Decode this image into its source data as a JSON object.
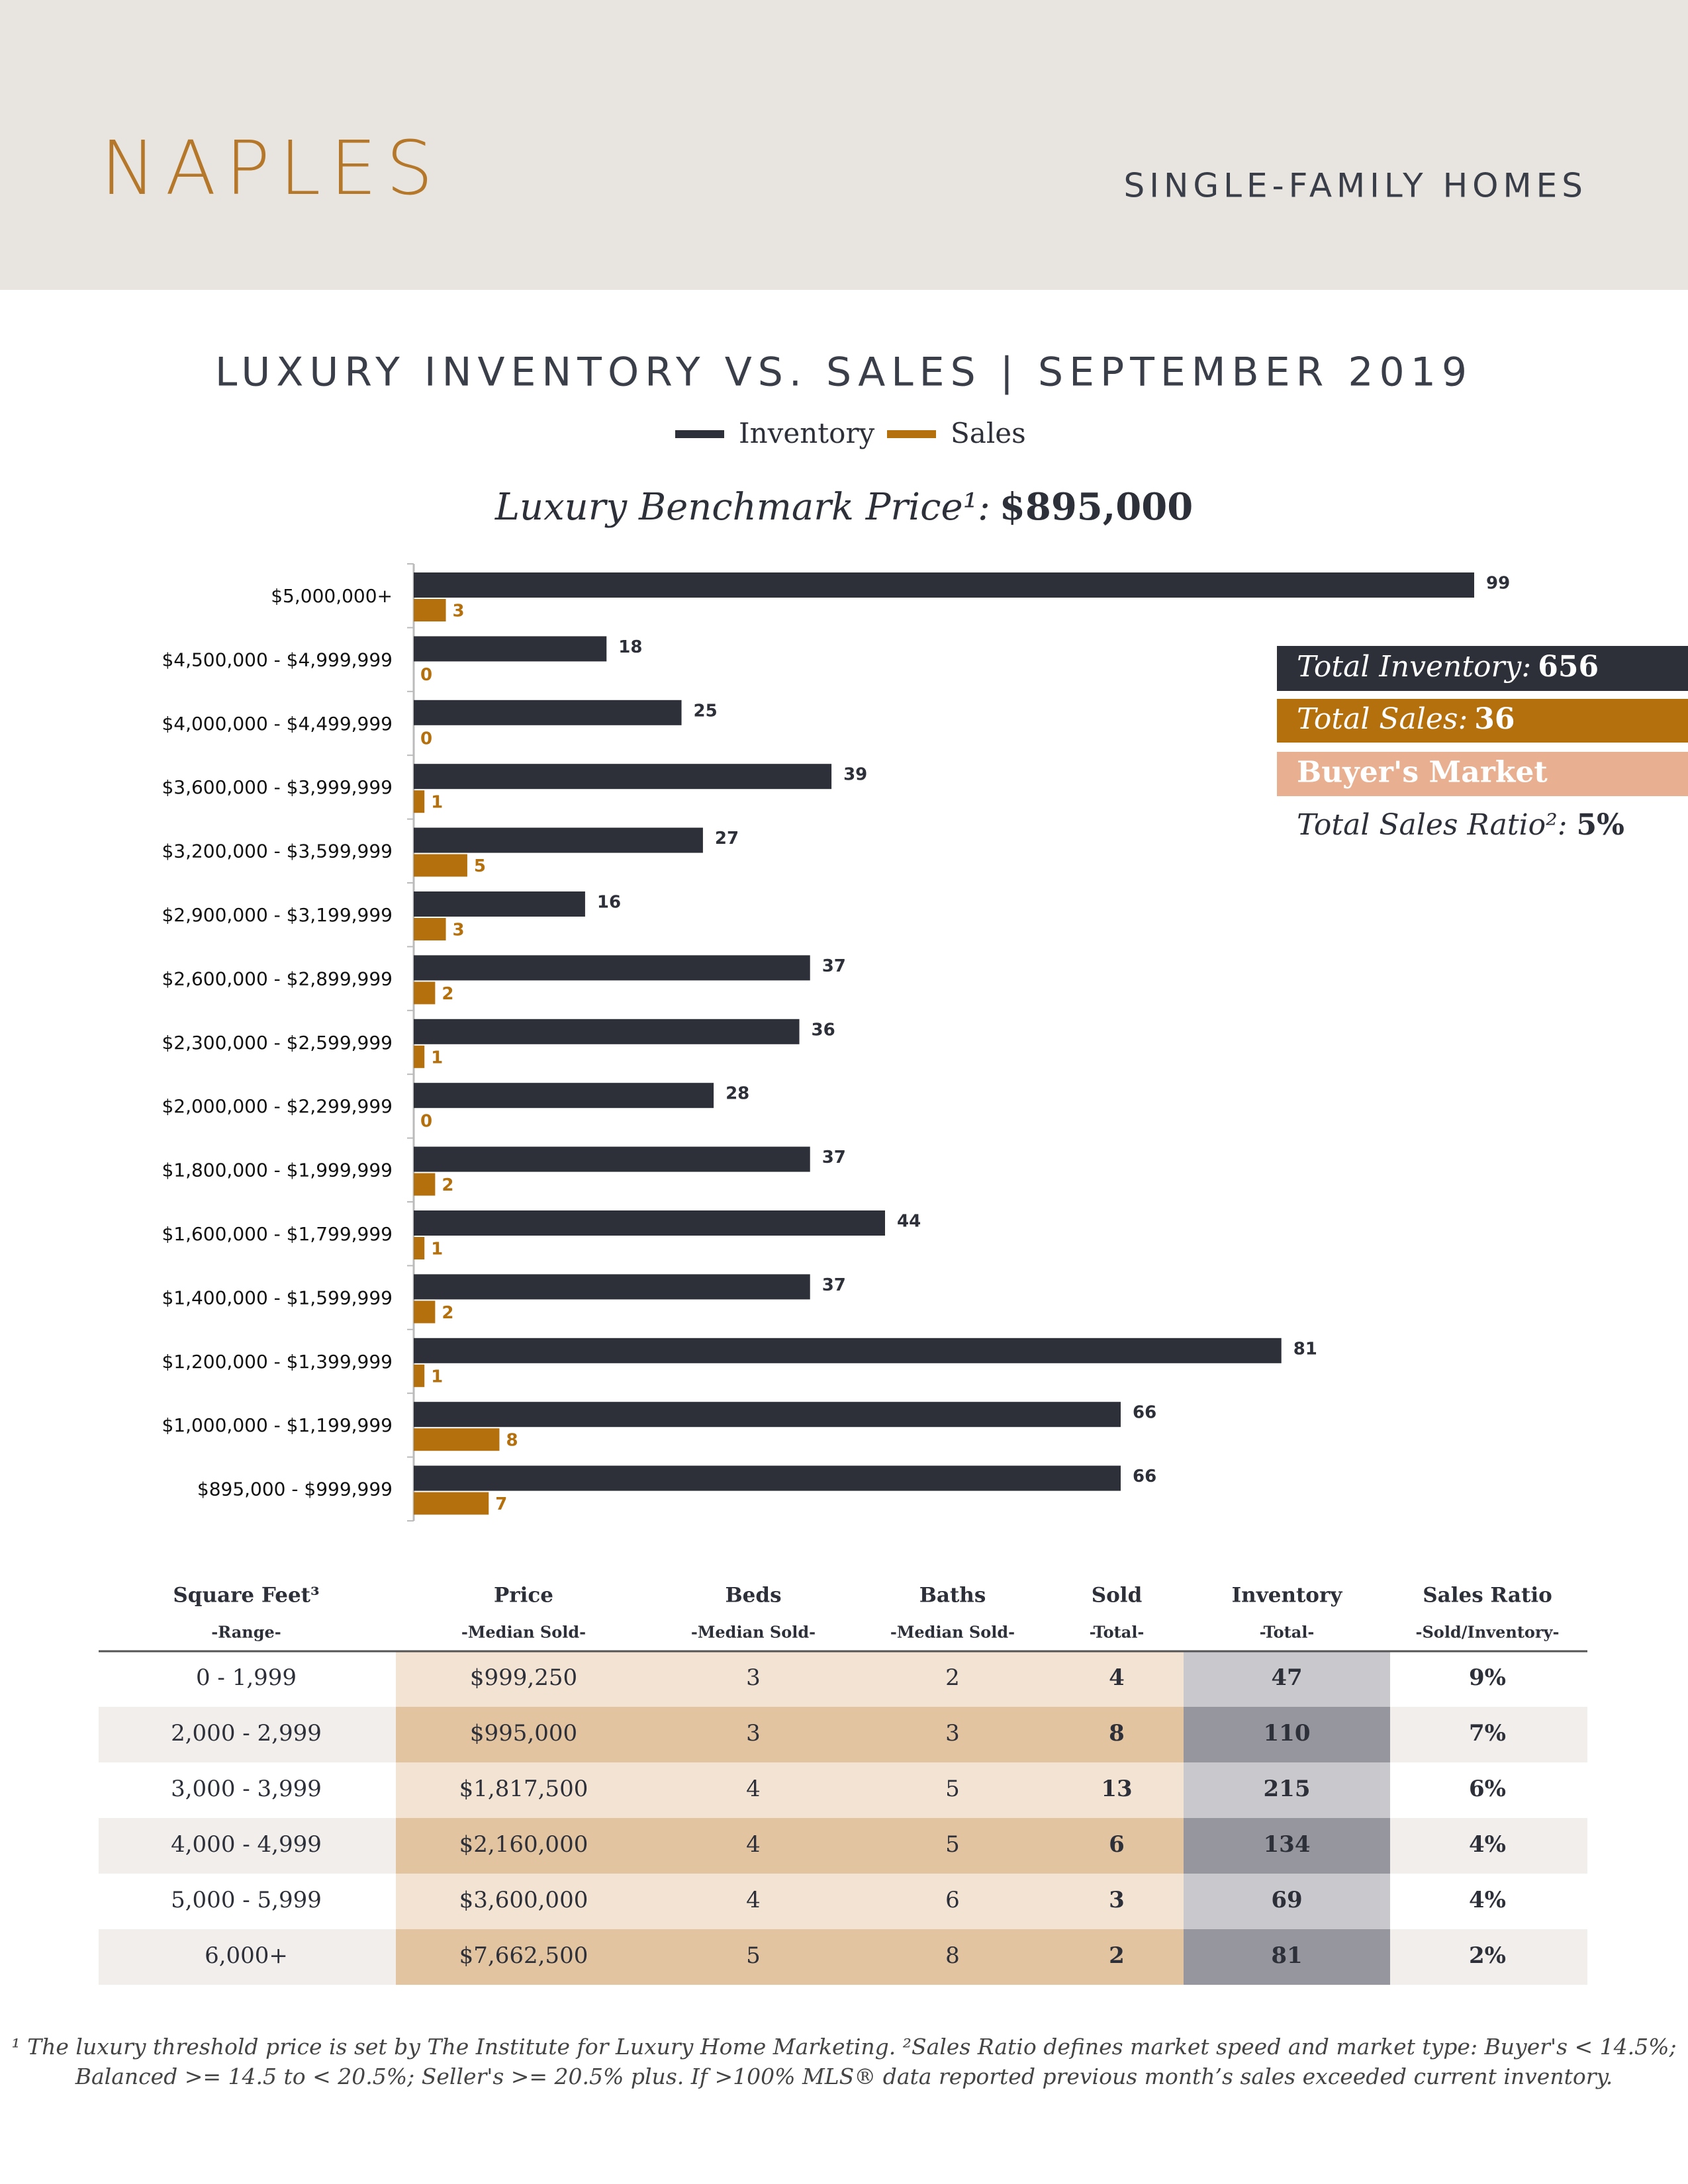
{
  "header": {
    "city": "NAPLES",
    "segment": "SINGLE-FAMILY HOMES"
  },
  "chart_data": {
    "type": "hbar",
    "title": "LUXURY INVENTORY VS. SALES | SEPTEMBER 2019",
    "benchmark_label": "Luxury Benchmark Price¹:",
    "benchmark_value": "$895,000",
    "categories": [
      "$5,000,000+",
      "$4,500,000 - $4,999,999",
      "$4,000,000 - $4,499,999",
      "$3,600,000 - $3,999,999",
      "$3,200,000 - $3,599,999",
      "$2,900,000 - $3,199,999",
      "$2,600,000 - $2,899,999",
      "$2,300,000 - $2,599,999",
      "$2,000,000 - $2,299,999",
      "$1,800,000 - $1,999,999",
      "$1,600,000 - $1,799,999",
      "$1,400,000 - $1,599,999",
      "$1,200,000 - $1,399,999",
      "$1,000,000 - $1,199,999",
      "$895,000 - $999,999"
    ],
    "series": [
      {
        "name": "Inventory",
        "color": "#2d3039",
        "values": [
          99,
          18,
          25,
          39,
          27,
          16,
          37,
          36,
          28,
          37,
          44,
          37,
          81,
          66,
          66
        ]
      },
      {
        "name": "Sales",
        "color": "#b5700e",
        "values": [
          3,
          0,
          0,
          1,
          5,
          3,
          2,
          1,
          0,
          2,
          1,
          2,
          1,
          8,
          7
        ]
      }
    ]
  },
  "summary": {
    "inventory_label": "Total Inventory:",
    "inventory_value": "656",
    "sales_label": "Total Sales:",
    "sales_value": "36",
    "market": "Buyer's Market",
    "ratio_label": "Total Sales Ratio²:",
    "ratio_value": "5%"
  },
  "table": {
    "headers": [
      "Square Feet³",
      "Price",
      "Beds",
      "Baths",
      "Sold",
      "Inventory",
      "Sales Ratio"
    ],
    "subheaders": [
      "-Range-",
      "-Median Sold-",
      "-Median Sold-",
      "-Median Sold-",
      "-Total-",
      "-Total-",
      "-Sold/Inventory-"
    ],
    "rows": [
      [
        "0 - 1,999",
        "$999,250",
        "3",
        "2",
        "4",
        "47",
        "9%"
      ],
      [
        "2,000 - 2,999",
        "$995,000",
        "3",
        "3",
        "8",
        "110",
        "7%"
      ],
      [
        "3,000 - 3,999",
        "$1,817,500",
        "4",
        "5",
        "13",
        "215",
        "6%"
      ],
      [
        "4,000 - 4,999",
        "$2,160,000",
        "4",
        "5",
        "6",
        "134",
        "4%"
      ],
      [
        "5,000 - 5,999",
        "$3,600,000",
        "4",
        "6",
        "3",
        "69",
        "4%"
      ],
      [
        "6,000+",
        "$7,662,500",
        "5",
        "8",
        "2",
        "81",
        "2%"
      ]
    ]
  },
  "footnote": [
    "¹ The luxury threshold price is set by The Institute for Luxury Home Marketing. ²Sales Ratio defines market speed and market type: Buyer's < 14.5%;",
    "Balanced >= 14.5 to < 20.5%; Seller's >= 20.5% plus. If >100% MLS® data reported previous month’s sales exceeded current inventory."
  ]
}
